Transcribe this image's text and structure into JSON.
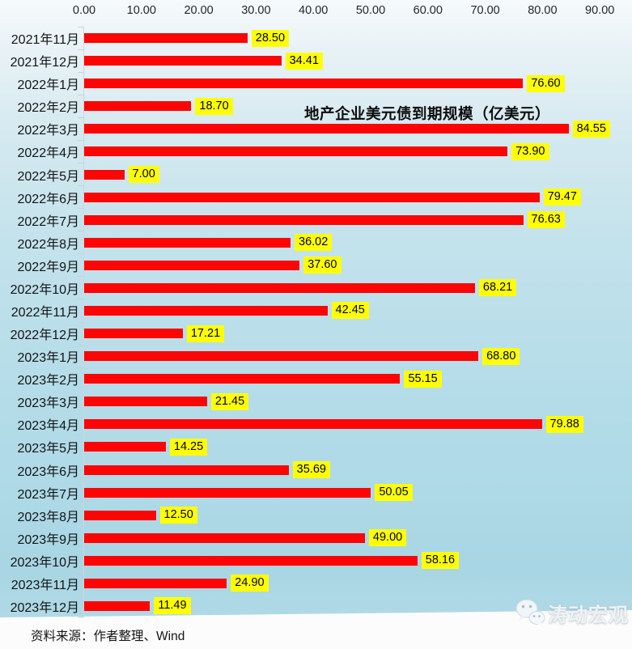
{
  "chart_data": {
    "type": "bar",
    "orientation": "horizontal",
    "title": "地产企业美元债到期规模（亿美元）",
    "value_axis": {
      "min": 0,
      "max": 90,
      "tick_interval": 10,
      "position": "top",
      "ticks": [
        "0.00",
        "10.00",
        "20.00",
        "30.00",
        "40.00",
        "50.00",
        "60.00",
        "70.00",
        "80.00",
        "90.00"
      ]
    },
    "grid": false,
    "legend": "none",
    "categories": [
      "2021年11月",
      "2021年12月",
      "2022年1月",
      "2022年2月",
      "2022年3月",
      "2022年4月",
      "2022年5月",
      "2022年6月",
      "2022年7月",
      "2022年8月",
      "2022年9月",
      "2022年10月",
      "2022年11月",
      "2022年12月",
      "2023年1月",
      "2023年2月",
      "2023年3月",
      "2023年4月",
      "2023年5月",
      "2023年6月",
      "2023年7月",
      "2023年8月",
      "2023年9月",
      "2023年10月",
      "2023年11月",
      "2023年12月"
    ],
    "values": [
      28.5,
      34.41,
      76.6,
      18.7,
      84.55,
      73.9,
      7.0,
      79.47,
      76.63,
      36.02,
      37.6,
      68.21,
      42.45,
      17.21,
      68.8,
      55.15,
      21.45,
      79.88,
      14.25,
      35.69,
      50.05,
      12.5,
      49.0,
      58.16,
      24.9,
      11.49
    ],
    "value_labels": [
      "28.50",
      "34.41",
      "76.60",
      "18.70",
      "84.55",
      "73.90",
      "7.00",
      "79.47",
      "76.63",
      "36.02",
      "37.60",
      "68.21",
      "42.45",
      "17.21",
      "68.80",
      "55.15",
      "21.45",
      "79.88",
      "14.25",
      "35.69",
      "50.05",
      "12.50",
      "49.00",
      "58.16",
      "24.90",
      "11.49"
    ],
    "colors": {
      "bar": "#fb0505",
      "data_label_bg": "#ffff00",
      "data_label_text": "#000000",
      "plot_bg_top": "#f6fafc",
      "plot_bg_bottom": "#a9d6e4"
    }
  },
  "source_note": "资料来源：作者整理、Wind",
  "watermark": {
    "icon": "wechat-icon",
    "text": "涛动宏观"
  }
}
